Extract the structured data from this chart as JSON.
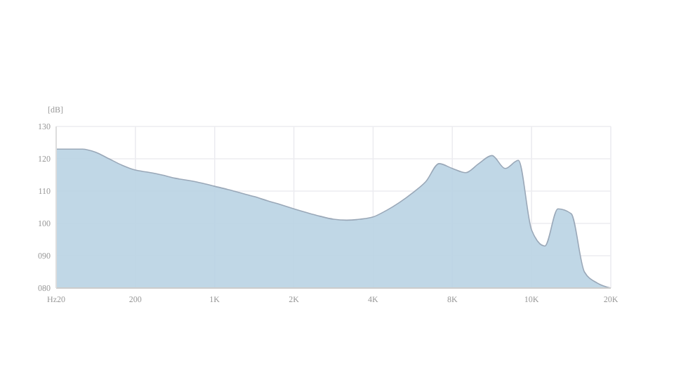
{
  "chart_data": {
    "type": "area",
    "ylabel": "[dB]",
    "categories": [
      "Hz20",
      null,
      null,
      null,
      null,
      null,
      "200",
      null,
      null,
      null,
      null,
      null,
      "1K",
      null,
      null,
      null,
      null,
      null,
      "2K",
      null,
      null,
      null,
      null,
      null,
      "4K",
      null,
      null,
      null,
      null,
      null,
      "8K",
      null,
      null,
      null,
      null,
      null,
      "10K",
      null,
      null,
      null,
      null,
      null,
      "20K"
    ],
    "series": [
      {
        "color": "#b9d3e3",
        "values": [
          123,
          123,
          123,
          122,
          120,
          118,
          116.5,
          115.8,
          115,
          114,
          113.3,
          112.5,
          111.5,
          110.5,
          109.4,
          108.3,
          107,
          105.8,
          104.5,
          103.3,
          102.2,
          101.3,
          101,
          101.3,
          102,
          104,
          106.5,
          109.5,
          113,
          118.5,
          117,
          115.7,
          118.5,
          121,
          117,
          119.5,
          98,
          93,
          104.5,
          103,
          85,
          81.5,
          80
        ]
      }
    ],
    "ylim": [
      80,
      130
    ],
    "yticks": [
      {
        "value": 80,
        "label": "080"
      },
      {
        "value": 90,
        "label": "090"
      },
      100,
      110,
      120,
      130
    ],
    "grid": true
  }
}
